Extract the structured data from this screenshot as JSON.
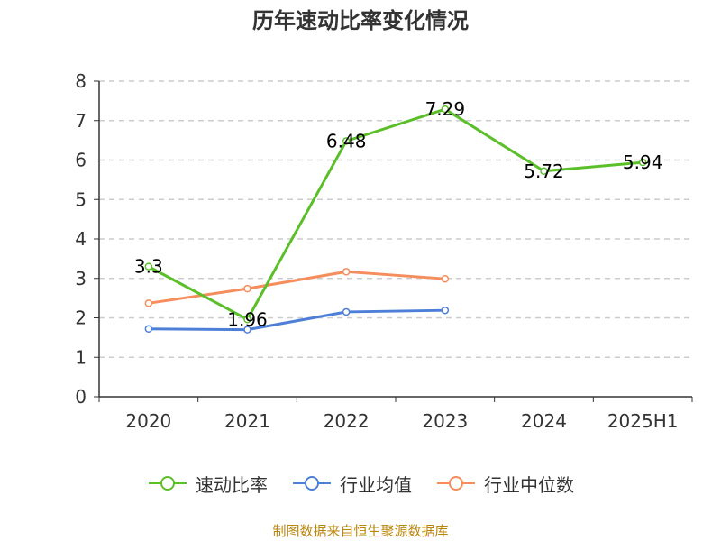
{
  "title": "历年速动比率变化情况",
  "source": "制图数据来自恒生聚源数据库",
  "colors": {
    "quick_ratio": "#5bbf2a",
    "industry_avg": "#4e7fd8",
    "industry_median": "#f58d5c"
  },
  "chart_data": {
    "type": "line",
    "title": "历年速动比率变化情况",
    "categories": [
      "2020",
      "2021",
      "2022",
      "2023",
      "2024",
      "2025H1"
    ],
    "ylim": [
      0,
      8
    ],
    "yticks": [
      0,
      1,
      2,
      3,
      4,
      5,
      6,
      7,
      8
    ],
    "grid": true,
    "legend_position": "bottom",
    "series": [
      {
        "name": "速动比率",
        "values": [
          3.3,
          1.96,
          6.48,
          7.29,
          5.72,
          5.94
        ],
        "show_labels": true
      },
      {
        "name": "行业均值",
        "values": [
          1.72,
          1.7,
          2.15,
          2.19,
          null,
          null
        ],
        "show_labels": false
      },
      {
        "name": "行业中位数",
        "values": [
          2.37,
          2.74,
          3.17,
          2.99,
          null,
          null
        ],
        "show_labels": false
      }
    ]
  }
}
